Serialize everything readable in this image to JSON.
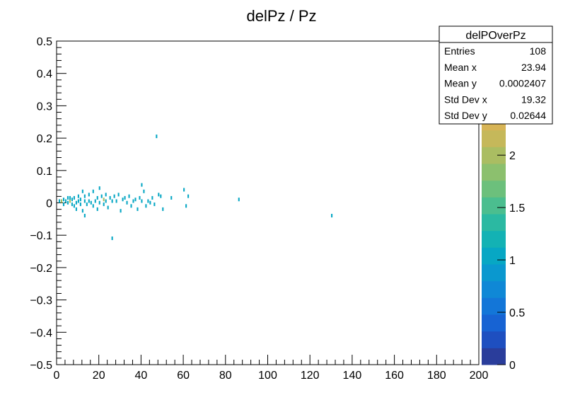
{
  "chart_data": {
    "type": "heatmap",
    "title": "delPz / Pz",
    "xlabel": "",
    "ylabel": "",
    "xlim": [
      0,
      200
    ],
    "ylim": [
      -0.5,
      0.5
    ],
    "x_ticks": [
      "0",
      "20",
      "40",
      "60",
      "80",
      "100",
      "120",
      "140",
      "160",
      "180",
      "200"
    ],
    "y_ticks": [
      "0.5",
      "0.4",
      "0.3",
      "0.2",
      "0.1",
      "0",
      "−0.1",
      "−0.2",
      "−0.3",
      "−0.4",
      "−0.5"
    ],
    "colorbar": {
      "range": [
        0,
        2.4
      ],
      "ticks": [
        "0",
        "0.5",
        "1",
        "1.5",
        "2"
      ],
      "colors": [
        "#2a3d9b",
        "#1e4fc0",
        "#1763d3",
        "#1376d8",
        "#0f88d6",
        "#0a98cf",
        "#07a7c4",
        "#13b2b4",
        "#2bb9a2",
        "#4bbe8f",
        "#6cc07c",
        "#8cc06e",
        "#aabd62",
        "#c5b85a",
        "#d7b456"
      ]
    },
    "stats": {
      "name": "delPOverPz",
      "rows": [
        {
          "label": "Entries",
          "value": "108"
        },
        {
          "label": "Mean x",
          "value": "23.94"
        },
        {
          "label": "Mean y",
          "value": "0.0002407"
        },
        {
          "label": "Std Dev x",
          "value": "19.32"
        },
        {
          "label": "Std Dev y",
          "value": "0.02644"
        }
      ]
    },
    "points": [
      {
        "x": 1,
        "y": 0.0,
        "z": 1
      },
      {
        "x": 2,
        "y": 0.0,
        "z": 2
      },
      {
        "x": 3,
        "y": -0.01,
        "z": 1
      },
      {
        "x": 3,
        "y": 0.005,
        "z": 1
      },
      {
        "x": 4,
        "y": 0.0,
        "z": 1
      },
      {
        "x": 5,
        "y": -0.005,
        "z": 1
      },
      {
        "x": 5,
        "y": 0.01,
        "z": 1
      },
      {
        "x": 6,
        "y": 0.0,
        "z": 2
      },
      {
        "x": 6,
        "y": 0.01,
        "z": 1
      },
      {
        "x": 7,
        "y": -0.01,
        "z": 1
      },
      {
        "x": 7,
        "y": 0.005,
        "z": 1
      },
      {
        "x": 8,
        "y": -0.015,
        "z": 1
      },
      {
        "x": 8,
        "y": 0.01,
        "z": 1
      },
      {
        "x": 9,
        "y": -0.005,
        "z": 1
      },
      {
        "x": 9,
        "y": -0.025,
        "z": 1
      },
      {
        "x": 10,
        "y": 0.0,
        "z": 1
      },
      {
        "x": 10,
        "y": 0.015,
        "z": 1
      },
      {
        "x": 11,
        "y": -0.01,
        "z": 1
      },
      {
        "x": 11,
        "y": 0.005,
        "z": 1
      },
      {
        "x": 12,
        "y": 0.03,
        "z": 1
      },
      {
        "x": 12,
        "y": -0.03,
        "z": 1
      },
      {
        "x": 13,
        "y": 0.0,
        "z": 1
      },
      {
        "x": 13,
        "y": 0.015,
        "z": 1
      },
      {
        "x": 13,
        "y": -0.045,
        "z": 1
      },
      {
        "x": 14,
        "y": -0.01,
        "z": 1
      },
      {
        "x": 15,
        "y": 0.0,
        "z": 1
      },
      {
        "x": 15,
        "y": 0.02,
        "z": 1
      },
      {
        "x": 16,
        "y": -0.005,
        "z": 1
      },
      {
        "x": 17,
        "y": 0.03,
        "z": 1
      },
      {
        "x": 17,
        "y": -0.015,
        "z": 1
      },
      {
        "x": 18,
        "y": 0.0,
        "z": 1
      },
      {
        "x": 19,
        "y": 0.01,
        "z": 1
      },
      {
        "x": 19,
        "y": -0.025,
        "z": 1
      },
      {
        "x": 20,
        "y": 0.04,
        "z": 1
      },
      {
        "x": 20,
        "y": -0.005,
        "z": 1
      },
      {
        "x": 21,
        "y": 0.015,
        "z": 1
      },
      {
        "x": 22,
        "y": -0.01,
        "z": 1
      },
      {
        "x": 22,
        "y": 0.005,
        "z": 2
      },
      {
        "x": 23,
        "y": 0.0,
        "z": 1
      },
      {
        "x": 23,
        "y": 0.02,
        "z": 1
      },
      {
        "x": 24,
        "y": -0.02,
        "z": 1
      },
      {
        "x": 25,
        "y": 0.01,
        "z": 1
      },
      {
        "x": 26,
        "y": 0.0,
        "z": 1
      },
      {
        "x": 26,
        "y": -0.115,
        "z": 1
      },
      {
        "x": 27,
        "y": 0.015,
        "z": 1
      },
      {
        "x": 28,
        "y": 0.0,
        "z": 1
      },
      {
        "x": 29,
        "y": 0.02,
        "z": 1
      },
      {
        "x": 30,
        "y": -0.03,
        "z": 1
      },
      {
        "x": 31,
        "y": 0.005,
        "z": 1
      },
      {
        "x": 32,
        "y": 0.01,
        "z": 1
      },
      {
        "x": 33,
        "y": -0.005,
        "z": 1
      },
      {
        "x": 34,
        "y": 0.015,
        "z": 1
      },
      {
        "x": 35,
        "y": -0.015,
        "z": 1
      },
      {
        "x": 36,
        "y": 0.0,
        "z": 1
      },
      {
        "x": 37,
        "y": 0.005,
        "z": 1
      },
      {
        "x": 38,
        "y": -0.025,
        "z": 1
      },
      {
        "x": 39,
        "y": 0.01,
        "z": 1
      },
      {
        "x": 40,
        "y": 0.05,
        "z": 1
      },
      {
        "x": 40,
        "y": 0.0,
        "z": 1
      },
      {
        "x": 41,
        "y": 0.03,
        "z": 1
      },
      {
        "x": 42,
        "y": -0.015,
        "z": 1
      },
      {
        "x": 43,
        "y": 0.0,
        "z": 1
      },
      {
        "x": 44,
        "y": -0.005,
        "z": 1
      },
      {
        "x": 45,
        "y": 0.01,
        "z": 1
      },
      {
        "x": 46,
        "y": -0.01,
        "z": 1
      },
      {
        "x": 47,
        "y": 0.2,
        "z": 1
      },
      {
        "x": 48,
        "y": 0.02,
        "z": 1
      },
      {
        "x": 49,
        "y": 0.015,
        "z": 1
      },
      {
        "x": 50,
        "y": -0.025,
        "z": 1
      },
      {
        "x": 54,
        "y": 0.01,
        "z": 1
      },
      {
        "x": 60,
        "y": 0.035,
        "z": 1
      },
      {
        "x": 61,
        "y": -0.015,
        "z": 1
      },
      {
        "x": 62,
        "y": 0.015,
        "z": 1
      },
      {
        "x": 86,
        "y": 0.005,
        "z": 1
      },
      {
        "x": 130,
        "y": -0.045,
        "z": 1
      }
    ]
  }
}
